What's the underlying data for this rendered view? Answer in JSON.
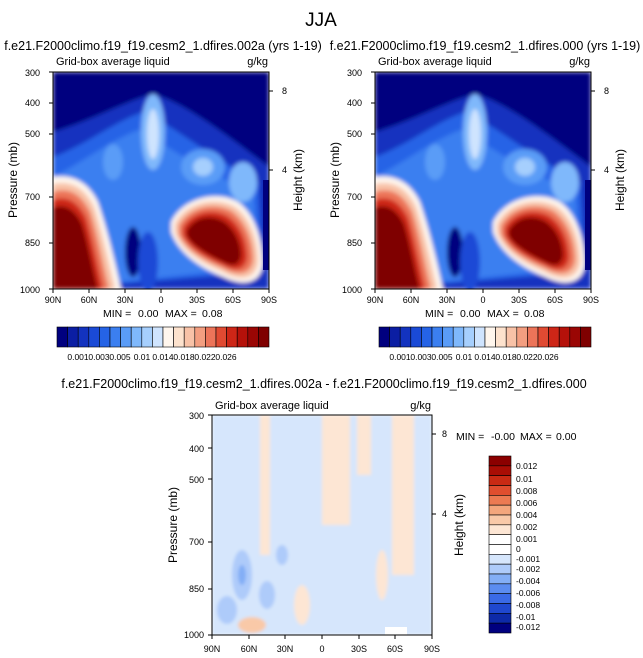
{
  "page_title": "JJA",
  "colors": {
    "main_scale": [
      "#00007f",
      "#0b1ea3",
      "#1333bf",
      "#1a4ad6",
      "#2563e6",
      "#3b7ff0",
      "#5a9cf7",
      "#7fb8fb",
      "#a6cffd",
      "#cfe4fe",
      "#fff6ed",
      "#fde2cd",
      "#f8c2a7",
      "#f39e80",
      "#ec7459",
      "#e04a32",
      "#cd2617",
      "#b5110a",
      "#9a0604",
      "#7f0000"
    ],
    "diff_scale": [
      "#00007f",
      "#0d2aa8",
      "#1f48cf",
      "#3a6ae6",
      "#5b8cf0",
      "#83aef6",
      "#aecbfa",
      "#d6e6fc",
      "#ffffff",
      "#ffffff",
      "#fde6d4",
      "#f9c9a8",
      "#f4a67c",
      "#ec7a52",
      "#e04e2f",
      "#c92a14",
      "#a90d05",
      "#8b0000"
    ],
    "background_navy": "#00007f",
    "diff_blue": "#d6e6fc",
    "diff_peach": "#fde6d4"
  },
  "chart_data": [
    {
      "type": "heatmap",
      "panel": "left",
      "title": "f.e21.F2000climo.f19_f19.cesm2_1.dfires.002a (yrs 1-19)",
      "left_label": "Grid-box average liquid",
      "right_label": "g/kg",
      "ylabel": "Pressure (mb)",
      "ylabel_right": "Height (km)",
      "x_ticks": [
        "90N",
        "60N",
        "30N",
        "0",
        "30S",
        "60S",
        "90S"
      ],
      "y_ticks": [
        "300",
        "400",
        "500",
        "700",
        "850",
        "1000"
      ],
      "height_ticks": [
        "8",
        "4"
      ],
      "stats": {
        "min_label": "MIN =",
        "min": "0.00",
        "max_label": "MAX =",
        "max": "0.08"
      },
      "colorbar_labels": [
        "0.001",
        "0.003",
        "0.005",
        "0.01",
        "0.014",
        "0.018",
        "0.022",
        "0.026"
      ]
    },
    {
      "type": "heatmap",
      "panel": "right",
      "title": "f.e21.F2000climo.f19_f19.cesm2_1.dfires.000 (yrs 1-19)",
      "left_label": "Grid-box average liquid",
      "right_label": "g/kg",
      "ylabel": "Pressure (mb)",
      "ylabel_right": "Height (km)",
      "x_ticks": [
        "90N",
        "60N",
        "30N",
        "0",
        "30S",
        "60S",
        "90S"
      ],
      "y_ticks": [
        "300",
        "400",
        "500",
        "700",
        "850",
        "1000"
      ],
      "height_ticks": [
        "8",
        "4"
      ],
      "stats": {
        "min_label": "MIN =",
        "min": "0.00",
        "max_label": "MAX =",
        "max": "0.08"
      },
      "colorbar_labels": [
        "0.001",
        "0.003",
        "0.005",
        "0.01",
        "0.014",
        "0.018",
        "0.022",
        "0.026"
      ]
    },
    {
      "type": "heatmap",
      "panel": "difference",
      "title": "f.e21.F2000climo.f19_f19.cesm2_1.dfires.002a - f.e21.F2000climo.f19_f19.cesm2_1.dfires.000",
      "left_label": "Grid-box average liquid",
      "right_label": "g/kg",
      "ylabel": "Pressure (mb)",
      "ylabel_right": "Height (km)",
      "x_ticks": [
        "90N",
        "60N",
        "30N",
        "0",
        "30S",
        "60S",
        "90S"
      ],
      "y_ticks": [
        "300",
        "400",
        "500",
        "700",
        "850",
        "1000"
      ],
      "height_ticks": [
        "8",
        "4"
      ],
      "stats": {
        "min_label": "MIN =",
        "min": "-0.00",
        "max_label": "MAX =",
        "max": "0.00"
      },
      "colorbar_labels": [
        "0.012",
        "0.01",
        "0.008",
        "0.006",
        "0.004",
        "0.002",
        "0.001",
        "0",
        "-0.001",
        "-0.002",
        "-0.004",
        "-0.006",
        "-0.008",
        "-0.01",
        "-0.012"
      ]
    }
  ]
}
